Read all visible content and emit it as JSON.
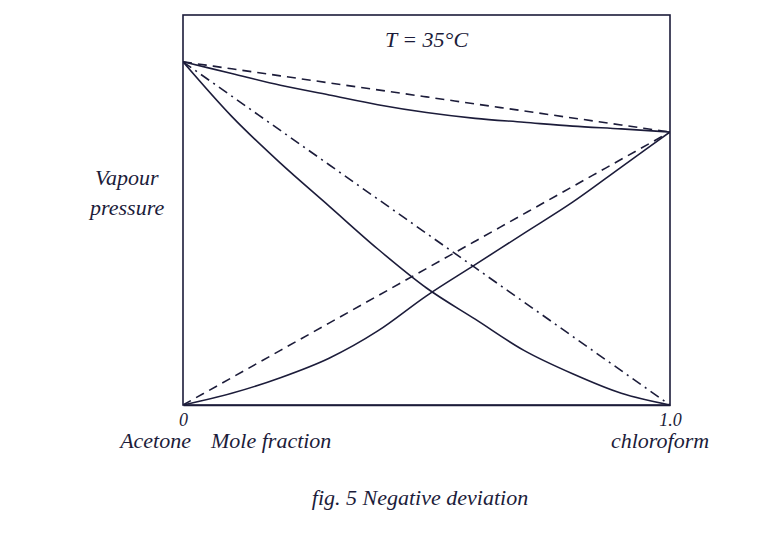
{
  "chart_data": {
    "type": "line",
    "title": "T = 35°C",
    "ylabel": "Vapour pressure",
    "xlabel": "Mole fraction",
    "annotations": [
      {
        "text": "Acetone",
        "x": 0
      },
      {
        "text": "chloroform",
        "x": 1
      }
    ],
    "caption": "fig. 5 Negative deviation",
    "x": [
      0,
      0.1,
      0.2,
      0.3,
      0.4,
      0.5,
      0.6,
      0.7,
      0.8,
      0.9,
      1
    ],
    "xlim": [
      0,
      1
    ],
    "xticks": [
      0,
      {
        "value": 1,
        "label": "1.0"
      }
    ],
    "ylim": [
      0,
      100
    ],
    "tick_labels": "x",
    "grid": false,
    "series": [
      {
        "color": "#1c1c3a",
        "line_style": "dashed",
        "values": [
          88,
          86.2,
          84.4,
          82.6,
          80.8,
          79,
          77.2,
          75.4,
          73.6,
          71.8,
          70
        ]
      },
      {
        "color": "#1c1c3a",
        "line_style": "dashdot",
        "values": [
          88,
          79.2,
          70.4,
          61.6,
          52.8,
          44,
          35.2,
          26.4,
          17.6,
          8.8,
          0
        ]
      },
      {
        "color": "#1c1c3a",
        "line_style": "dashed",
        "values": [
          0,
          7,
          14,
          21,
          28,
          35,
          42,
          49,
          56,
          63,
          70
        ]
      },
      {
        "color": "#1c1c3a",
        "line_style": "solid",
        "values": [
          88,
          85,
          82,
          79.5,
          77,
          75,
          73.5,
          72.5,
          71.5,
          70.8,
          70
        ]
      },
      {
        "color": "#1c1c3a",
        "line_style": "solid",
        "values": [
          88,
          74,
          62,
          51,
          40,
          30,
          22,
          14,
          8,
          3,
          0
        ]
      },
      {
        "color": "#1c1c3a",
        "line_style": "solid",
        "values": [
          0,
          3,
          7,
          12,
          19,
          28,
          36,
          44,
          52,
          61,
          70
        ]
      }
    ]
  }
}
